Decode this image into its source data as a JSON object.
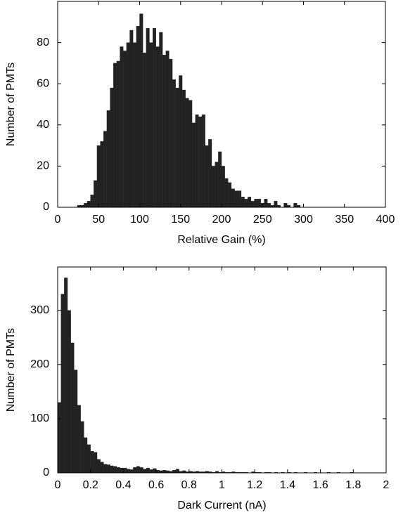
{
  "chart_data": [
    {
      "type": "histogram",
      "xlabel": "Relative Gain (%)",
      "ylabel": "Number of PMTs",
      "color": "#222222",
      "bins": [
        24,
        28,
        32,
        36,
        40,
        44,
        48,
        52,
        56,
        60,
        64,
        68,
        72,
        76,
        80,
        84,
        88,
        92,
        96,
        100,
        104,
        108,
        112,
        116,
        120,
        124,
        128,
        132,
        136,
        140,
        144,
        148,
        152,
        156,
        160,
        164,
        168,
        172,
        176,
        180,
        184,
        188,
        192,
        196,
        200,
        204,
        208,
        212,
        216,
        220,
        224,
        228,
        232,
        236,
        240,
        244,
        248,
        252,
        256,
        260,
        264,
        268,
        272,
        276,
        280,
        284,
        288,
        292,
        296,
        300
      ],
      "counts": [
        1,
        1,
        2,
        3,
        6,
        13,
        30,
        32,
        37,
        47,
        58,
        70,
        71,
        78,
        76,
        80,
        86,
        80,
        88,
        94,
        75,
        87,
        80,
        87,
        78,
        85,
        74,
        76,
        72,
        62,
        58,
        64,
        57,
        53,
        52,
        41,
        45,
        44,
        45,
        30,
        33,
        20,
        22,
        27,
        20,
        14,
        12,
        9,
        8,
        8,
        5,
        4,
        5,
        3,
        4,
        4,
        2,
        4,
        2,
        1,
        3,
        1,
        0,
        2,
        1,
        0,
        2,
        1,
        0
      ],
      "xlim": [
        0,
        400
      ],
      "ylim": [
        0,
        100
      ],
      "xticks": [
        0,
        50,
        100,
        150,
        200,
        250,
        300,
        350,
        400
      ],
      "yticks": [
        0,
        20,
        40,
        60,
        80
      ]
    },
    {
      "type": "histogram",
      "xlabel": "Dark Current (nA)",
      "ylabel": "Number of PMTs",
      "color": "#222222",
      "bins": [
        0,
        0.02,
        0.04,
        0.06,
        0.08,
        0.1,
        0.12,
        0.14,
        0.16,
        0.18,
        0.2,
        0.22,
        0.24,
        0.26,
        0.28,
        0.3,
        0.32,
        0.34,
        0.36,
        0.38,
        0.4,
        0.42,
        0.44,
        0.46,
        0.48,
        0.5,
        0.52,
        0.54,
        0.56,
        0.58,
        0.6,
        0.62,
        0.64,
        0.66,
        0.68,
        0.7,
        0.72,
        0.74,
        0.76,
        0.78,
        0.8,
        0.82,
        0.84,
        0.86,
        0.88,
        0.9,
        0.92,
        0.94,
        0.96,
        0.98,
        1,
        1.02,
        1.04,
        1.06,
        1.08,
        1.1,
        1.12,
        1.14,
        1.16,
        1.18,
        1.2,
        1.22,
        1.24,
        1.26,
        1.28,
        1.3,
        1.32,
        1.34,
        1.36,
        1.38,
        1.4,
        1.42,
        1.44,
        1.46,
        1.48,
        1.5,
        1.52,
        1.54,
        1.56,
        1.58,
        1.6,
        1.62,
        1.64,
        1.66,
        1.68,
        1.7,
        1.72,
        1.74,
        1.76,
        1.78,
        1.8
      ],
      "counts": [
        130,
        330,
        360,
        300,
        240,
        190,
        125,
        95,
        65,
        52,
        40,
        38,
        25,
        20,
        16,
        15,
        13,
        12,
        10,
        9,
        9,
        7,
        6,
        10,
        12,
        10,
        7,
        9,
        6,
        8,
        5,
        4,
        5,
        4,
        3,
        5,
        7,
        3,
        4,
        2,
        3,
        2,
        3,
        2,
        2,
        3,
        2,
        1,
        3,
        1,
        2,
        1,
        1,
        2,
        1,
        1,
        1,
        1,
        0,
        2,
        1,
        1,
        0,
        1,
        1,
        0,
        1,
        0,
        1,
        0,
        1,
        0,
        1,
        0,
        0,
        1,
        0,
        0,
        1,
        0,
        0,
        0,
        1,
        0,
        0,
        1,
        0,
        0,
        0,
        1
      ],
      "xlim": [
        0,
        2
      ],
      "ylim": [
        0,
        380
      ],
      "xticks": [
        0,
        0.2,
        0.4,
        0.6,
        0.8,
        1,
        1.2,
        1.4,
        1.6,
        1.8,
        2
      ],
      "yticks": [
        0,
        100,
        200,
        300
      ]
    }
  ]
}
